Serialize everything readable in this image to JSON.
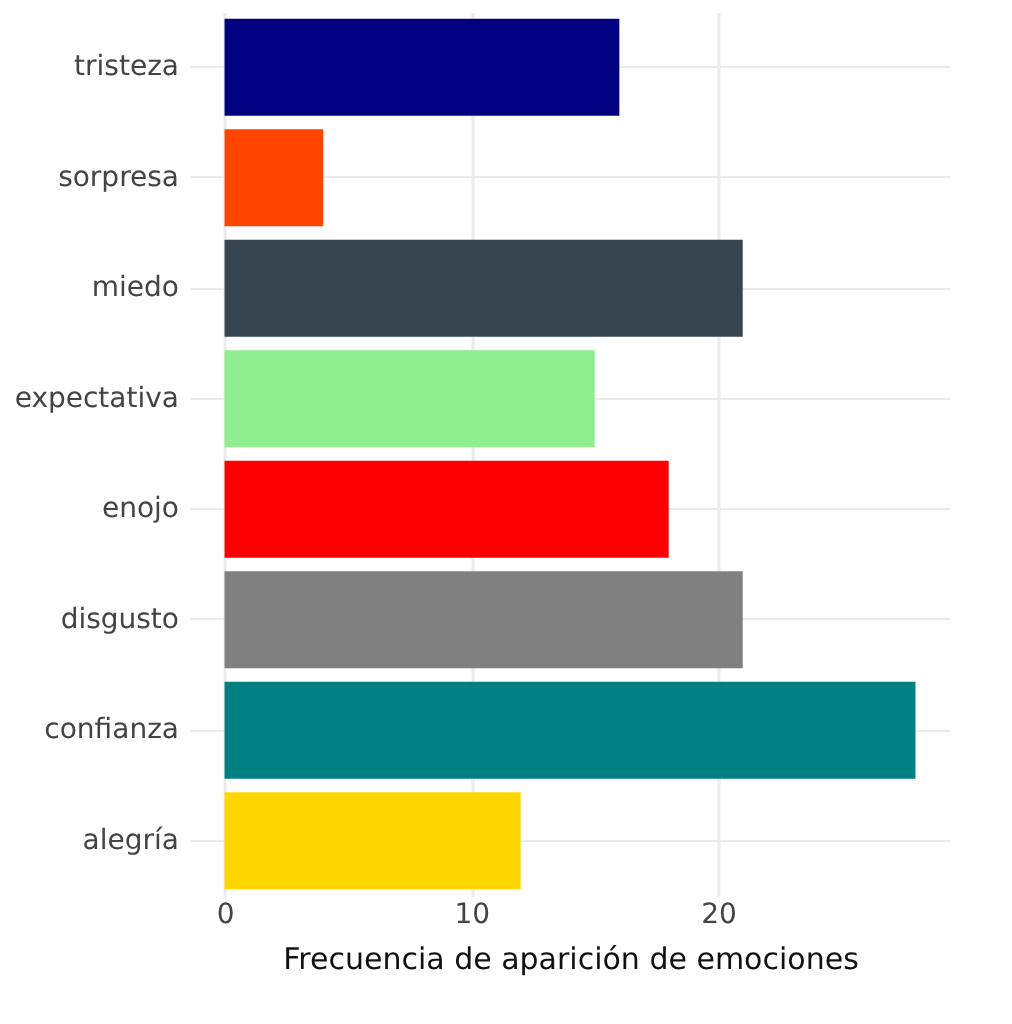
{
  "chart_data": {
    "type": "bar",
    "orientation": "horizontal",
    "xlabel": "Frecuencia de aparición de emociones",
    "categories": [
      "tristeza",
      "sorpresa",
      "miedo",
      "expectativa",
      "enojo",
      "disgusto",
      "confianza",
      "alegría"
    ],
    "values": [
      16,
      4,
      21,
      15,
      18,
      21,
      28,
      12
    ],
    "colors": [
      "#000080",
      "#ff4500",
      "#36454f",
      "#90ee90",
      "#ff0000",
      "#808080",
      "#008080",
      "#ffd700"
    ],
    "xlim": [
      -1.4,
      29.4
    ],
    "xticks": [
      0,
      10,
      20
    ],
    "grid": true
  }
}
